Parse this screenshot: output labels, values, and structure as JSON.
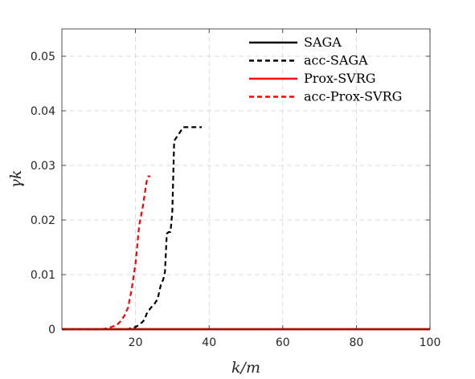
{
  "chart_data": {
    "type": "line",
    "title": "",
    "xlabel": "k/m",
    "ylabel": "γk",
    "xlim": [
      0,
      100
    ],
    "ylim": [
      0,
      0.055
    ],
    "xticks": [
      20,
      40,
      60,
      80,
      100
    ],
    "yticks": [
      0,
      0.01,
      0.02,
      0.03,
      0.04,
      0.05
    ],
    "xtick_labels": [
      "20",
      "40",
      "60",
      "80",
      "100"
    ],
    "ytick_labels": [
      "0",
      "0.01",
      "0.02",
      "0.03",
      "0.04",
      "0.05"
    ],
    "grid": true,
    "legend_position": "top-right",
    "series": [
      {
        "name": "SAGA",
        "color": "#000000",
        "style": "solid",
        "x": [
          0,
          100
        ],
        "y": [
          0,
          0
        ]
      },
      {
        "name": "acc-SAGA",
        "color": "#000000",
        "style": "dashed",
        "x": [
          0,
          18,
          19,
          20,
          21,
          22,
          22.5,
          23,
          24,
          25,
          26,
          27,
          27.5,
          28,
          28.5,
          29,
          29.5,
          30,
          30.5,
          31,
          31.5,
          32,
          33,
          34,
          36,
          38
        ],
        "y": [
          0,
          0,
          0.0003,
          0.0004,
          0.0008,
          0.0014,
          0.0018,
          0.0028,
          0.0038,
          0.0045,
          0.0055,
          0.0085,
          0.009,
          0.0105,
          0.0175,
          0.0178,
          0.0178,
          0.0215,
          0.0345,
          0.035,
          0.0355,
          0.036,
          0.037,
          0.037,
          0.037,
          0.037
        ]
      },
      {
        "name": "Prox-SVRG",
        "color": "#ff0000",
        "style": "solid",
        "x": [
          0,
          100
        ],
        "y": [
          0,
          0
        ]
      },
      {
        "name": "acc-Prox-SVRG",
        "color": "#ff0000",
        "style": "dashed",
        "x": [
          0,
          11,
          13,
          15,
          16,
          17,
          18,
          19,
          20,
          21,
          22,
          23,
          23.5,
          24
        ],
        "y": [
          0,
          0,
          0.0003,
          0.0008,
          0.0015,
          0.0025,
          0.004,
          0.0075,
          0.012,
          0.019,
          0.0225,
          0.027,
          0.028,
          0.028
        ]
      }
    ]
  }
}
